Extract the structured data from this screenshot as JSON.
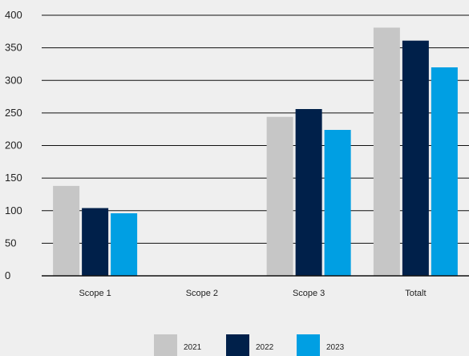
{
  "chart_data": {
    "type": "bar",
    "title": "",
    "xlabel": "",
    "ylabel": "",
    "categories": [
      "Scope 1",
      "Scope 2",
      "Scope 3",
      "Totalt"
    ],
    "series": [
      {
        "name": "2021",
        "color": "#c6c6c6",
        "values": [
          138,
          0,
          244,
          381
        ]
      },
      {
        "name": "2022",
        "color": "#00204a",
        "values": [
          104,
          0,
          256,
          361
        ]
      },
      {
        "name": "2023",
        "color": "#009fe3",
        "values": [
          96,
          0,
          224,
          320
        ]
      }
    ],
    "ylim": [
      0,
      400
    ],
    "yticks": [
      0,
      50,
      100,
      150,
      200,
      250,
      300,
      350,
      400
    ],
    "grid": true,
    "legend_position": "bottom-center"
  }
}
